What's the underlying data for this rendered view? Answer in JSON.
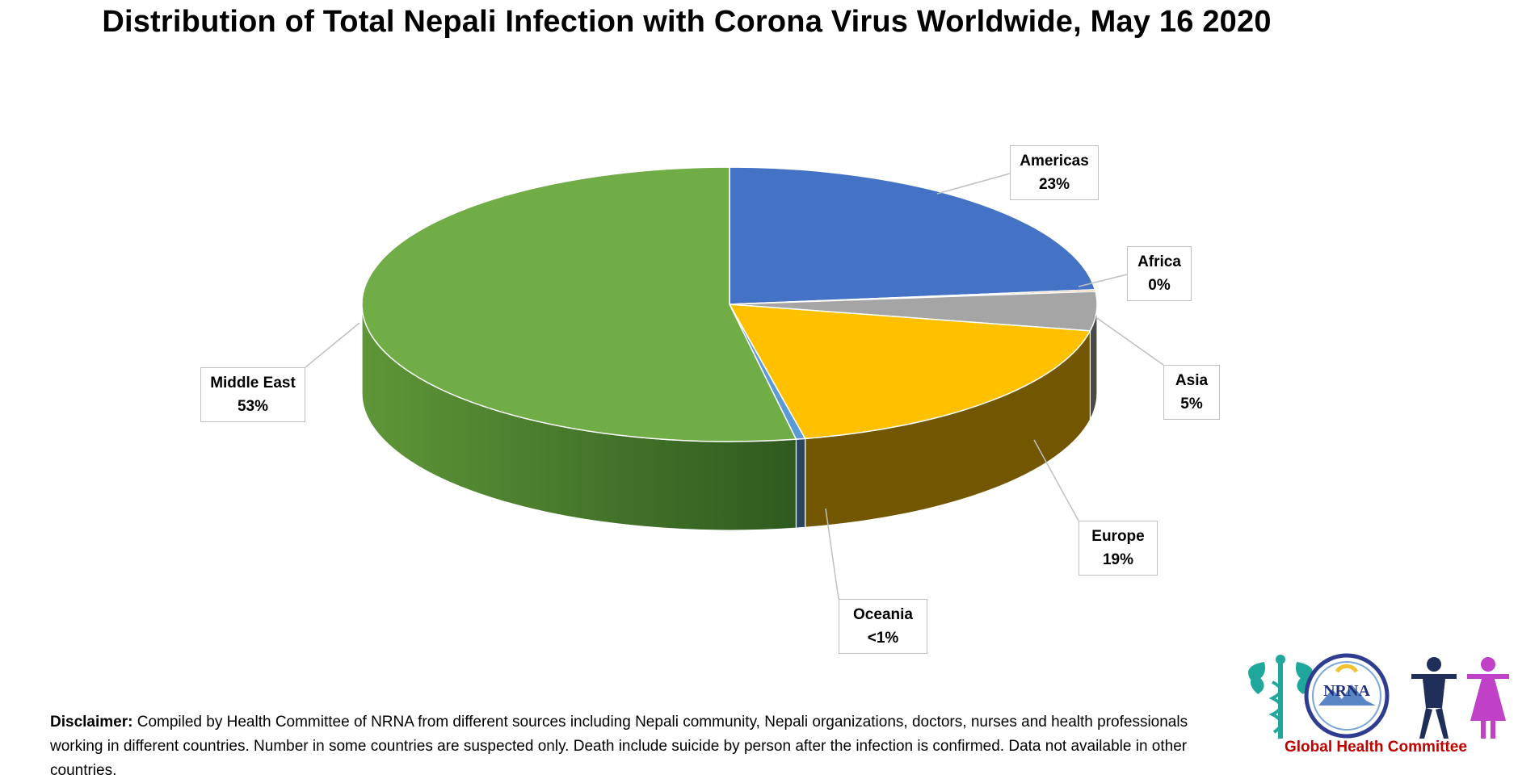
{
  "title": "Distribution of Total Nepali Infection with Corona Virus Worldwide, May 16 2020",
  "chart_data": {
    "type": "pie",
    "title": "Distribution of Total Nepali Infection with Corona Virus Worldwide, May 16 2020",
    "slices": [
      {
        "name": "Americas",
        "label": "23%",
        "value": 23.3,
        "color": "#4472c4"
      },
      {
        "name": "Africa",
        "label": "0%",
        "value": 0.2,
        "color": "#ed7d31"
      },
      {
        "name": "Asia",
        "label": "5%",
        "value": 4.6,
        "color": "#a5a5a5"
      },
      {
        "name": "Europe",
        "label": "19%",
        "value": 18.6,
        "color": "#ffc000"
      },
      {
        "name": "Oceania",
        "label": "<1%",
        "value": 0.4,
        "color": "#5b9bd5"
      },
      {
        "name": "Middle East",
        "label": "53%",
        "value": 52.9,
        "color": "#70ad47"
      }
    ],
    "legend": "none",
    "style": "3d"
  },
  "disclaimer": {
    "heading": "Disclaimer:",
    "text": " Compiled by Health Committee of NRNA from different sources including Nepali community, Nepali organizations, doctors, nurses and health professionals working in different countries. Number in some countries are suspected only. Death include suicide by person after the infection is confirmed. Data not available in other countries."
  },
  "logo": {
    "org": "NRNA",
    "caption": "Global Health Committee"
  }
}
